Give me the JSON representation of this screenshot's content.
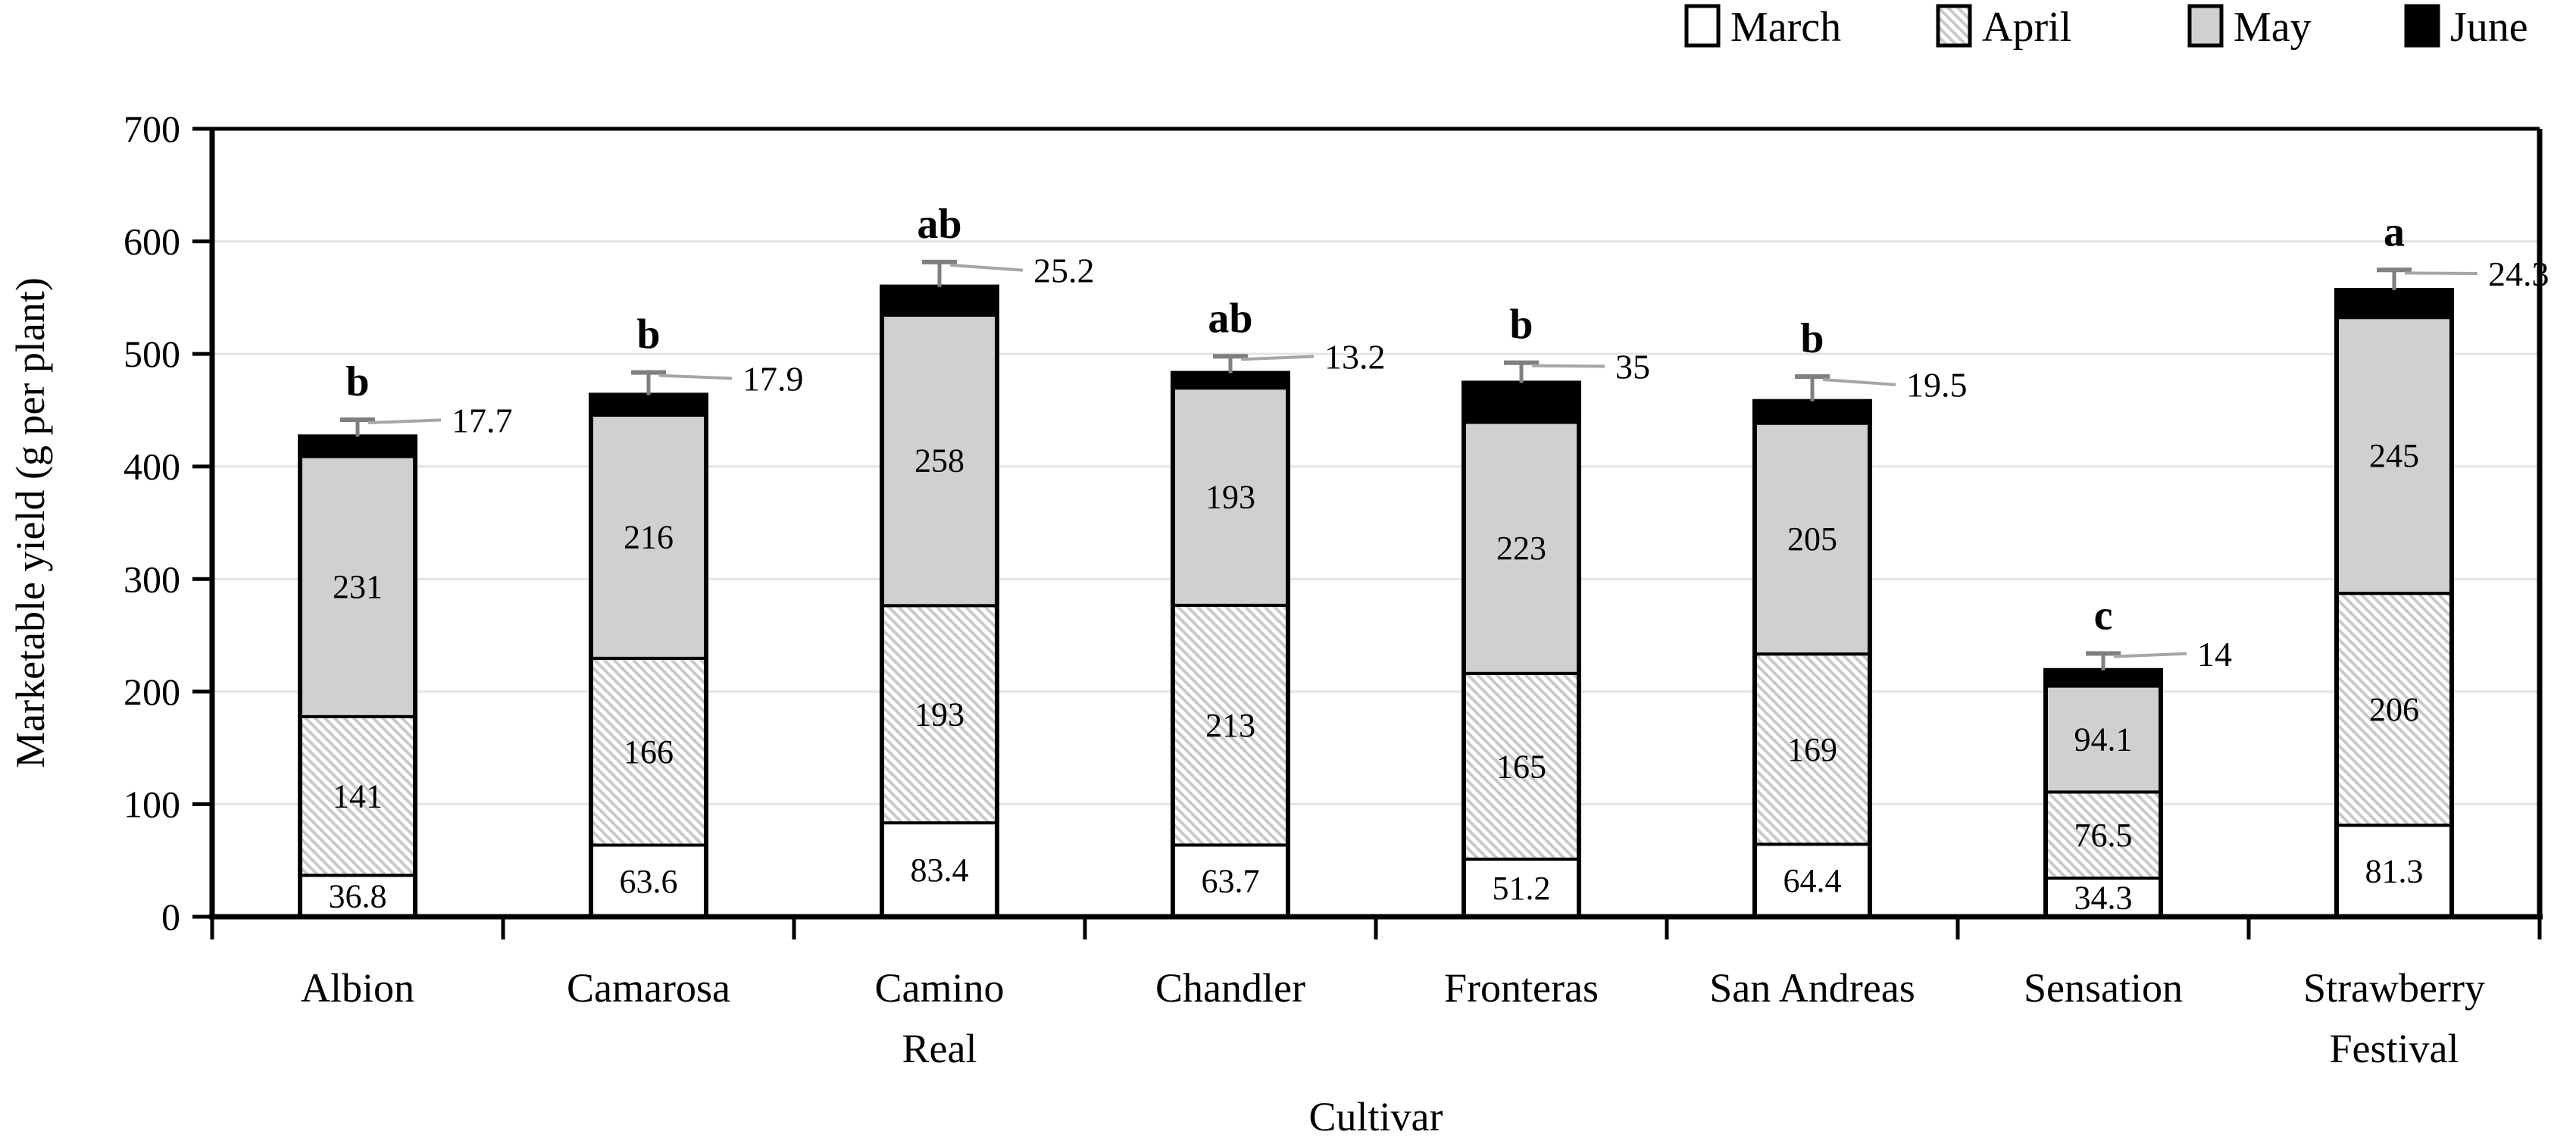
{
  "chart_data": {
    "type": "bar",
    "stacked": true,
    "title": "",
    "xlabel": "Cultivar",
    "ylabel": "Marketable yield (g per plant)",
    "ylim": [
      0,
      700
    ],
    "yticks": [
      0,
      100,
      200,
      300,
      400,
      500,
      600,
      700
    ],
    "grid": "horizontal light gray lines, plot area framed top/right/left/bottom",
    "legend": {
      "position": "top-right",
      "items": [
        "March",
        "April",
        "May",
        "June"
      ]
    },
    "categories": [
      "Albion",
      "Camarosa",
      "Camino Real",
      "Chandler",
      "Fronteras",
      "San Andreas",
      "Sensation",
      "Strawberry Festival"
    ],
    "categories_lines": [
      [
        "Albion"
      ],
      [
        "Camarosa"
      ],
      [
        "Camino",
        "Real"
      ],
      [
        "Chandler"
      ],
      [
        "Fronteras"
      ],
      [
        "San Andreas"
      ],
      [
        "Sensation"
      ],
      [
        "Strawberry",
        "Festival"
      ]
    ],
    "series": [
      {
        "name": "March",
        "style": "white",
        "values": [
          36.8,
          63.6,
          83.4,
          63.7,
          51.2,
          64.4,
          34.3,
          81.3
        ],
        "value_labels": [
          "36.8",
          "63.6",
          "83.4",
          "63.7",
          "51.2",
          "64.4",
          "34.3",
          "81.3"
        ]
      },
      {
        "name": "April",
        "style": "diagonal-hatch",
        "values": [
          141,
          166,
          193,
          213,
          165,
          169,
          76.5,
          206
        ],
        "value_labels": [
          "141",
          "166",
          "193",
          "213",
          "165",
          "169",
          "76.5",
          "206"
        ]
      },
      {
        "name": "May",
        "style": "gray",
        "values": [
          231,
          216,
          258,
          193,
          223,
          205,
          94.1,
          245
        ],
        "value_labels": [
          "231",
          "216",
          "258",
          "193",
          "223",
          "205",
          "94.1",
          "245"
        ]
      },
      {
        "name": "June",
        "style": "black",
        "values": [
          17.7,
          17.9,
          25.2,
          13.2,
          35,
          19.5,
          14,
          24.3
        ],
        "value_labels": []
      }
    ],
    "june_value_callouts": [
      "17.7",
      "17.9",
      "25.2",
      "13.2",
      "35",
      "19.5",
      "14",
      "24.3"
    ],
    "significance_letters": [
      "b",
      "b",
      "ab",
      "ab",
      "b",
      "b",
      "c",
      "a"
    ],
    "error_bar_up_est": [
      15,
      20,
      22,
      15,
      18,
      22,
      15,
      18
    ]
  },
  "colors": {
    "march_fill": "#ffffff",
    "april_hatch_stripe": "#c9c9c9",
    "may_fill": "#d0d0d0",
    "june_fill": "#000000",
    "segment_border": "#000000",
    "gridline": "#e4e4e4",
    "axis": "#000000",
    "error_bar": "#7f7f7f",
    "leader_line": "#a6a6a6",
    "text": "#000000"
  }
}
